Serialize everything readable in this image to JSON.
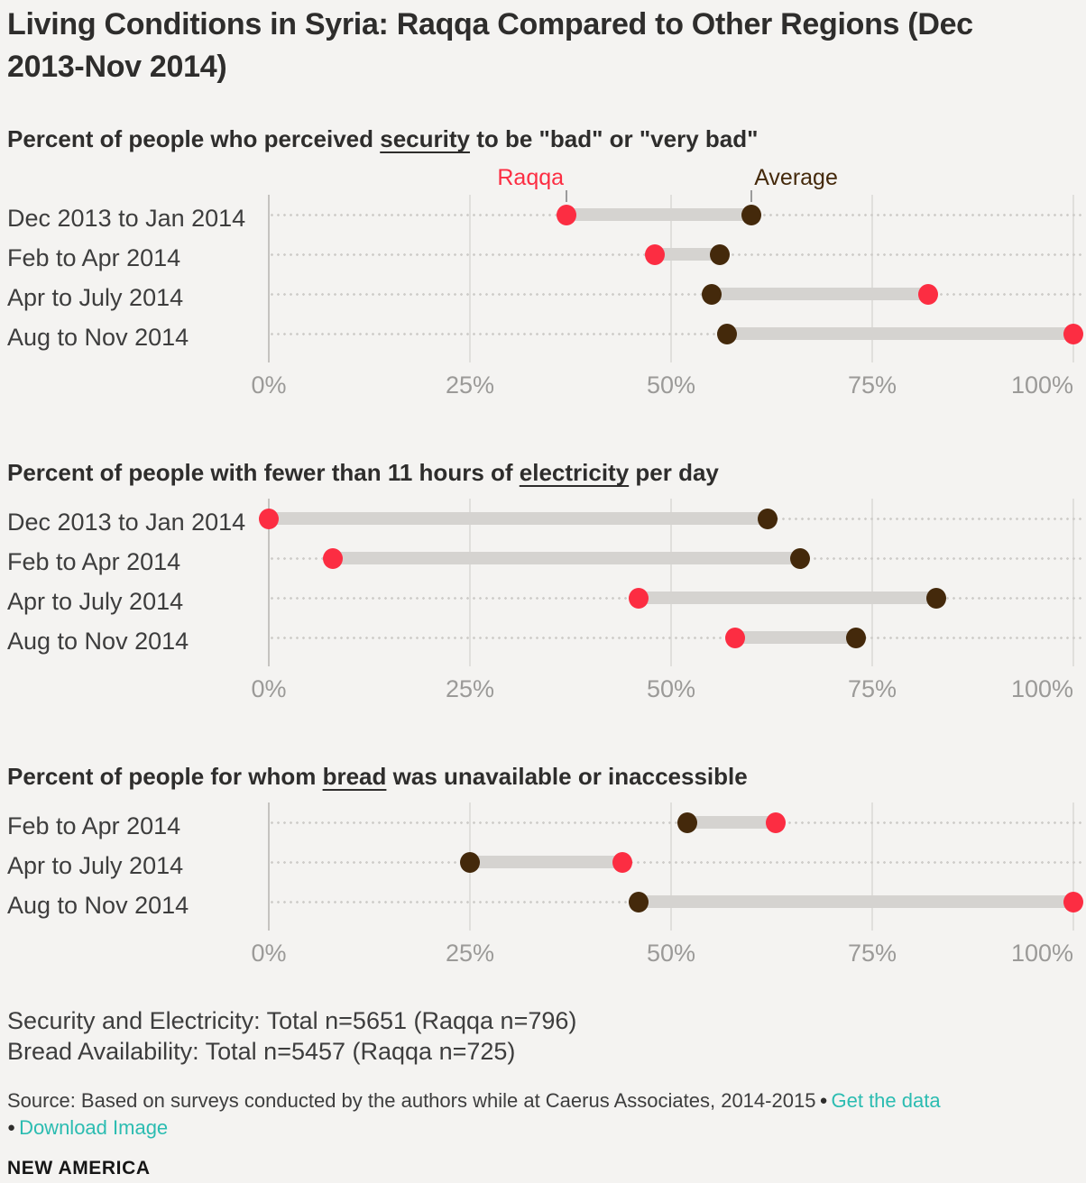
{
  "page": {
    "title_lines": [
      "Living Conditions in Syria: Raqqa Compared to Other Regions (Dec",
      "2013-Nov 2014)"
    ]
  },
  "colors": {
    "background": "#f4f3f1",
    "raqqa": "#fc2d42",
    "average": "#44290b",
    "connector_bar": "#d5d3d0",
    "gridline": "#e0dfdc",
    "axis_line": "#c5c3c0",
    "tick_text": "#9b9a98",
    "link_teal": "#2bbcb1"
  },
  "chart_data": [
    {
      "type": "dumbbell",
      "subtitle": {
        "pre": "Percent of people who perceived ",
        "key": "security",
        "post": " to be \"bad\" or \"very bad\""
      },
      "show_legend": true,
      "categories": [
        "Dec 2013 to Jan 2014",
        "Feb to Apr 2014",
        "Apr to July 2014",
        "Aug to Nov 2014"
      ],
      "series": [
        {
          "name": "Raqqa",
          "color": "#fc2d42",
          "values": [
            37,
            48,
            82,
            100
          ]
        },
        {
          "name": "Average",
          "color": "#44290b",
          "values": [
            60,
            56,
            55,
            57
          ]
        }
      ],
      "xlim": [
        0,
        100
      ],
      "xticks": [
        "0%",
        "25%",
        "50%",
        "75%",
        "100%"
      ],
      "grid": true,
      "legend_position": "above-first-row"
    },
    {
      "type": "dumbbell",
      "subtitle": {
        "pre": "Percent of people with fewer than 11 hours of ",
        "key": "electricity",
        "post": " per day"
      },
      "show_legend": false,
      "categories": [
        "Dec 2013 to Jan 2014",
        "Feb to Apr 2014",
        "Apr to July 2014",
        "Aug to Nov 2014"
      ],
      "series": [
        {
          "name": "Raqqa",
          "color": "#fc2d42",
          "values": [
            0,
            8,
            46,
            58
          ]
        },
        {
          "name": "Average",
          "color": "#44290b",
          "values": [
            62,
            66,
            83,
            73
          ]
        }
      ],
      "xlim": [
        0,
        100
      ],
      "xticks": [
        "0%",
        "25%",
        "50%",
        "75%",
        "100%"
      ],
      "grid": true
    },
    {
      "type": "dumbbell",
      "subtitle": {
        "pre": "Percent of people for whom ",
        "key": "bread",
        "post": " was unavailable or inaccessible"
      },
      "show_legend": false,
      "categories": [
        "Feb to Apr 2014",
        "Apr to July 2014",
        "Aug to Nov 2014"
      ],
      "series": [
        {
          "name": "Raqqa",
          "color": "#fc2d42",
          "values": [
            63,
            44,
            100
          ]
        },
        {
          "name": "Average",
          "color": "#44290b",
          "values": [
            52,
            25,
            46
          ]
        }
      ],
      "xlim": [
        0,
        100
      ],
      "xticks": [
        "0%",
        "25%",
        "50%",
        "75%",
        "100%"
      ],
      "grid": true
    }
  ],
  "notes": {
    "line1": "Security and Electricity: Total n=5651 (Raqqa n=796)",
    "line2": "Bread Availability: Total n=5457 (Raqqa n=725)"
  },
  "source": {
    "text": "Source: Based on surveys conducted by the authors while at Caerus Associates, 2014-2015",
    "bullet": "●",
    "get_data_link": "Get the data",
    "download_link": "Download Image"
  },
  "brand": "NEW AMERICA"
}
